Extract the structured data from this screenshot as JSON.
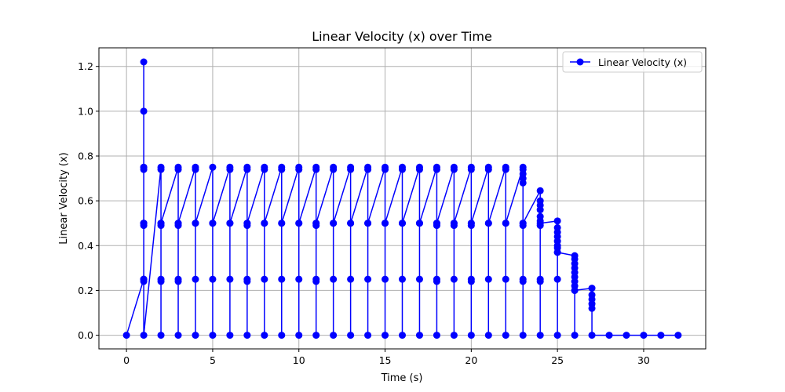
{
  "chart_data": {
    "type": "line",
    "title": "Linear Velocity (x) over Time",
    "xlabel": "Time (s)",
    "ylabel": "Linear Velocity (x)",
    "xlim": [
      -1.6,
      33.6
    ],
    "ylim": [
      -0.061,
      1.283
    ],
    "xticks": [
      0,
      5,
      10,
      15,
      20,
      25,
      30
    ],
    "yticks": [
      0.0,
      0.2,
      0.4,
      0.6,
      0.8,
      1.0,
      1.2
    ],
    "grid": true,
    "legend_position": "top-right",
    "color": "#0000ff",
    "series": [
      {
        "name": "Linear Velocity (x)",
        "marker": "circle",
        "points": [
          [
            0,
            0
          ],
          [
            1,
            0.25
          ],
          [
            1,
            0.24
          ],
          [
            1,
            0.25
          ],
          [
            1,
            0.5
          ],
          [
            1,
            0.49
          ],
          [
            1,
            0.5
          ],
          [
            1,
            0.75
          ],
          [
            1,
            0.74
          ],
          [
            1,
            0.75
          ],
          [
            1,
            1.0
          ],
          [
            1,
            1.22
          ],
          [
            1,
            0.5
          ],
          [
            1,
            0.25
          ],
          [
            1,
            0
          ],
          [
            2,
            0.75
          ],
          [
            2,
            0.74
          ],
          [
            2,
            0.5
          ],
          [
            2,
            0.49
          ],
          [
            2,
            0.25
          ],
          [
            2,
            0.24
          ],
          [
            2,
            0
          ],
          [
            2,
            0.5
          ],
          [
            3,
            0.75
          ],
          [
            3,
            0.74
          ],
          [
            3,
            0.5
          ],
          [
            3,
            0.49
          ],
          [
            3,
            0.25
          ],
          [
            3,
            0.24
          ],
          [
            3,
            0
          ],
          [
            3,
            0.5
          ],
          [
            4,
            0.75
          ],
          [
            4,
            0.74
          ],
          [
            4,
            0.5
          ],
          [
            4,
            0.25
          ],
          [
            4,
            0
          ],
          [
            4,
            0.5
          ],
          [
            5,
            0.75
          ],
          [
            5,
            0.5
          ],
          [
            5,
            0.25
          ],
          [
            5,
            0
          ],
          [
            5,
            0.5
          ],
          [
            6,
            0.75
          ],
          [
            6,
            0.74
          ],
          [
            6,
            0.5
          ],
          [
            6,
            0.25
          ],
          [
            6,
            0
          ],
          [
            6,
            0.5
          ],
          [
            7,
            0.75
          ],
          [
            7,
            0.74
          ],
          [
            7,
            0.5
          ],
          [
            7,
            0.49
          ],
          [
            7,
            0.25
          ],
          [
            7,
            0.24
          ],
          [
            7,
            0
          ],
          [
            7,
            0.5
          ],
          [
            8,
            0.75
          ],
          [
            8,
            0.74
          ],
          [
            8,
            0.5
          ],
          [
            8,
            0.25
          ],
          [
            8,
            0
          ],
          [
            8,
            0.5
          ],
          [
            9,
            0.75
          ],
          [
            9,
            0.74
          ],
          [
            9,
            0.5
          ],
          [
            9,
            0.25
          ],
          [
            9,
            0
          ],
          [
            9,
            0.5
          ],
          [
            10,
            0.75
          ],
          [
            10,
            0.74
          ],
          [
            10,
            0.5
          ],
          [
            10,
            0.25
          ],
          [
            10,
            0
          ],
          [
            10,
            0.5
          ],
          [
            11,
            0.75
          ],
          [
            11,
            0.74
          ],
          [
            11,
            0.5
          ],
          [
            11,
            0.49
          ],
          [
            11,
            0.25
          ],
          [
            11,
            0.24
          ],
          [
            11,
            0
          ],
          [
            11,
            0.5
          ],
          [
            12,
            0.75
          ],
          [
            12,
            0.74
          ],
          [
            12,
            0.5
          ],
          [
            12,
            0.25
          ],
          [
            12,
            0
          ],
          [
            12,
            0.5
          ],
          [
            13,
            0.75
          ],
          [
            13,
            0.74
          ],
          [
            13,
            0.5
          ],
          [
            13,
            0.25
          ],
          [
            13,
            0
          ],
          [
            13,
            0.5
          ],
          [
            14,
            0.75
          ],
          [
            14,
            0.74
          ],
          [
            14,
            0.5
          ],
          [
            14,
            0.25
          ],
          [
            14,
            0
          ],
          [
            14,
            0.5
          ],
          [
            15,
            0.75
          ],
          [
            15,
            0.74
          ],
          [
            15,
            0.5
          ],
          [
            15,
            0.25
          ],
          [
            15,
            0
          ],
          [
            15,
            0.5
          ],
          [
            16,
            0.75
          ],
          [
            16,
            0.74
          ],
          [
            16,
            0.5
          ],
          [
            16,
            0.25
          ],
          [
            16,
            0
          ],
          [
            16,
            0.5
          ],
          [
            17,
            0.75
          ],
          [
            17,
            0.74
          ],
          [
            17,
            0.5
          ],
          [
            17,
            0.25
          ],
          [
            17,
            0
          ],
          [
            17,
            0.5
          ],
          [
            18,
            0.75
          ],
          [
            18,
            0.74
          ],
          [
            18,
            0.5
          ],
          [
            18,
            0.49
          ],
          [
            18,
            0.25
          ],
          [
            18,
            0.24
          ],
          [
            18,
            0
          ],
          [
            18,
            0.5
          ],
          [
            19,
            0.75
          ],
          [
            19,
            0.74
          ],
          [
            19,
            0.5
          ],
          [
            19,
            0.49
          ],
          [
            19,
            0.25
          ],
          [
            19,
            0
          ],
          [
            19,
            0.5
          ],
          [
            20,
            0.75
          ],
          [
            20,
            0.74
          ],
          [
            20,
            0.5
          ],
          [
            20,
            0.49
          ],
          [
            20,
            0.25
          ],
          [
            20,
            0.24
          ],
          [
            20,
            0
          ],
          [
            20,
            0.5
          ],
          [
            21,
            0.75
          ],
          [
            21,
            0.74
          ],
          [
            21,
            0.5
          ],
          [
            21,
            0.25
          ],
          [
            21,
            0
          ],
          [
            21,
            0.5
          ],
          [
            22,
            0.75
          ],
          [
            22,
            0.74
          ],
          [
            22,
            0.5
          ],
          [
            22,
            0.25
          ],
          [
            22,
            0
          ],
          [
            22,
            0.5
          ],
          [
            23,
            0.75
          ],
          [
            23,
            0.74
          ],
          [
            23,
            0.72
          ],
          [
            23,
            0.7
          ],
          [
            23,
            0.68
          ],
          [
            23,
            0.5
          ],
          [
            23,
            0.49
          ],
          [
            23,
            0.25
          ],
          [
            23,
            0.24
          ],
          [
            23,
            0
          ],
          [
            23,
            0.5
          ],
          [
            24,
            0.645
          ],
          [
            24,
            0.6
          ],
          [
            24,
            0.58
          ],
          [
            24,
            0.56
          ],
          [
            24,
            0.53
          ],
          [
            24,
            0.51
          ],
          [
            24,
            0.49
          ],
          [
            24,
            0.25
          ],
          [
            24,
            0.24
          ],
          [
            24,
            0
          ],
          [
            24,
            0.5
          ],
          [
            25,
            0.51
          ],
          [
            25,
            0.48
          ],
          [
            25,
            0.46
          ],
          [
            25,
            0.44
          ],
          [
            25,
            0.42
          ],
          [
            25,
            0.4
          ],
          [
            25,
            0.39
          ],
          [
            25,
            0.37
          ],
          [
            25,
            0.25
          ],
          [
            25,
            0
          ],
          [
            25,
            0.37
          ],
          [
            26,
            0.355
          ],
          [
            26,
            0.34
          ],
          [
            26,
            0.32
          ],
          [
            26,
            0.3
          ],
          [
            26,
            0.28
          ],
          [
            26,
            0.26
          ],
          [
            26,
            0.24
          ],
          [
            26,
            0.22
          ],
          [
            26,
            0.2
          ],
          [
            26,
            0
          ],
          [
            26,
            0.2
          ],
          [
            27,
            0.21
          ],
          [
            27,
            0.18
          ],
          [
            27,
            0.16
          ],
          [
            27,
            0.14
          ],
          [
            27,
            0.12
          ],
          [
            27,
            0
          ],
          [
            28,
            0
          ],
          [
            29,
            0
          ],
          [
            30,
            0
          ],
          [
            31,
            0
          ],
          [
            32,
            0
          ]
        ]
      }
    ]
  }
}
